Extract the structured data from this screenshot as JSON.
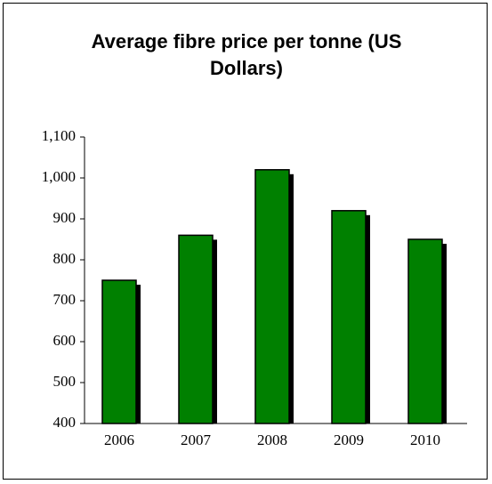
{
  "chart_data": {
    "type": "bar",
    "title": "Average fibre price per tonne (US Dollars)",
    "categories": [
      "2006",
      "2007",
      "2008",
      "2009",
      "2010"
    ],
    "values": [
      750,
      860,
      1020,
      920,
      850
    ],
    "color": "#008000",
    "ylim": [
      400,
      1100
    ],
    "yticks": [
      400,
      500,
      600,
      700,
      800,
      900,
      {
        "value": 1000,
        "label": "1,000"
      },
      {
        "value": 1100,
        "label": "1,100"
      }
    ]
  }
}
